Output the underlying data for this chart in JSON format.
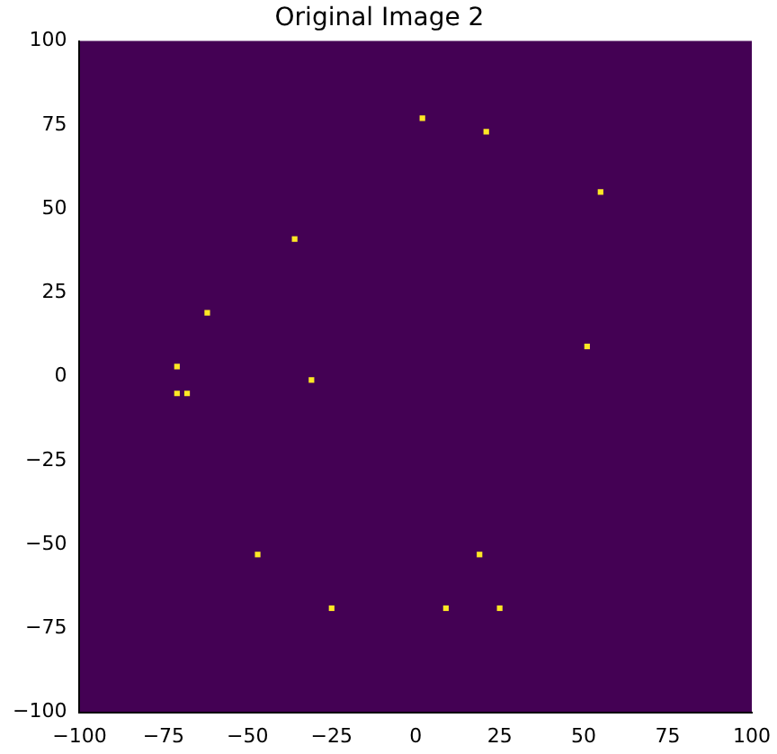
{
  "chart_data": {
    "type": "scatter",
    "title": "Original Image 2",
    "x": [
      2,
      21,
      55,
      -36,
      -62,
      51,
      -71,
      -31,
      -71,
      -68,
      -47,
      19,
      -25,
      9,
      25
    ],
    "values": [
      77,
      73,
      55,
      41,
      19,
      9,
      3,
      -1,
      -5,
      -5,
      -53,
      -53,
      -69,
      -69,
      -69
    ],
    "color": "#fde725",
    "marker": "square",
    "grid": false,
    "legend": false,
    "xlim": [
      -100,
      100
    ],
    "ylim": [
      -100,
      100
    ],
    "xticks": [
      -100,
      -75,
      -50,
      -25,
      0,
      25,
      50,
      75,
      100
    ],
    "yticks": [
      -100,
      -75,
      -50,
      -25,
      0,
      25,
      50,
      75,
      100
    ]
  }
}
